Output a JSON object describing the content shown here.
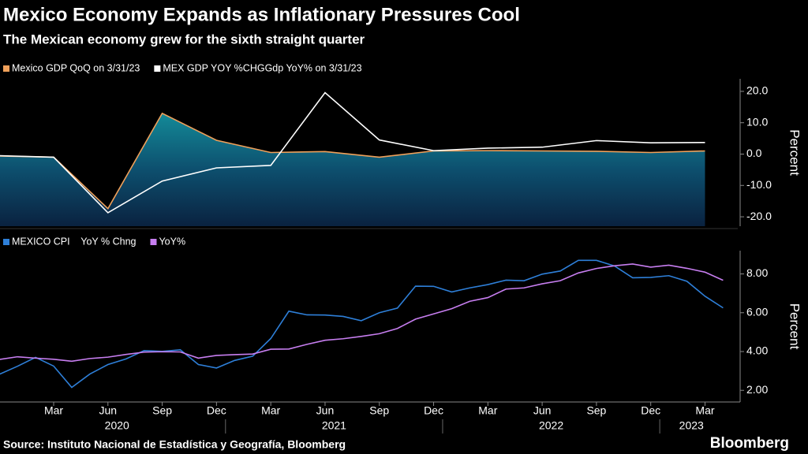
{
  "header": {
    "title": "Mexico Economy Expands as Inflationary Pressures Cool",
    "subtitle": "The Mexican economy grew for the sixth straight quarter"
  },
  "source": "Source: Instituto Nacional de Estadística y Geografía, Bloomberg",
  "brand": "Bloomberg",
  "chart_data": [
    {
      "type": "line",
      "area_series": 0,
      "y_label": "Percent",
      "x": [
        "2019-12",
        "2020-03",
        "2020-06",
        "2020-09",
        "2020-12",
        "2021-03",
        "2021-06",
        "2021-09",
        "2021-12",
        "2022-03",
        "2022-06",
        "2022-09",
        "2022-12",
        "2023-03"
      ],
      "series": [
        {
          "name": "Mexico GDP QoQ on 3/31/23",
          "color": "#f0a05a",
          "values": [
            -0.6,
            -1.0,
            -17.4,
            13.0,
            4.4,
            0.5,
            0.8,
            -1.0,
            1.0,
            1.1,
            1.0,
            0.9,
            0.5,
            1.0
          ]
        },
        {
          "name": "MEX GDP YOY %CHGGdp YoY% on 3/31/23",
          "color": "#ffffff",
          "values": [
            -0.5,
            -1.0,
            -18.7,
            -8.6,
            -4.4,
            -3.6,
            19.6,
            4.5,
            1.1,
            1.9,
            2.2,
            4.3,
            3.6,
            3.7
          ]
        }
      ],
      "ylim": [
        -23,
        24
      ],
      "yticks": [
        {
          "value": -20,
          "label": "-20.0"
        },
        {
          "value": -10,
          "label": "-10.0"
        },
        {
          "value": 0,
          "label": "0.0"
        },
        {
          "value": 10,
          "label": "10.0"
        },
        {
          "value": 20,
          "label": "20.0"
        }
      ]
    },
    {
      "type": "line",
      "y_label": "Percent",
      "x": [
        "2019-12",
        "2020-01",
        "2020-02",
        "2020-03",
        "2020-04",
        "2020-05",
        "2020-06",
        "2020-07",
        "2020-08",
        "2020-09",
        "2020-10",
        "2020-11",
        "2020-12",
        "2021-01",
        "2021-02",
        "2021-03",
        "2021-04",
        "2021-05",
        "2021-06",
        "2021-07",
        "2021-08",
        "2021-09",
        "2021-10",
        "2021-11",
        "2021-12",
        "2022-01",
        "2022-02",
        "2022-03",
        "2022-04",
        "2022-05",
        "2022-06",
        "2022-07",
        "2022-08",
        "2022-09",
        "2022-10",
        "2022-11",
        "2022-12",
        "2023-01",
        "2023-02",
        "2023-03",
        "2023-04"
      ],
      "series": [
        {
          "name": "MEXICO CPI    YoY % Chng",
          "color": "#2e7fd8",
          "values": [
            2.83,
            3.24,
            3.7,
            3.25,
            2.15,
            2.84,
            3.33,
            3.62,
            4.05,
            4.01,
            4.09,
            3.33,
            3.15,
            3.54,
            3.76,
            4.67,
            6.08,
            5.89,
            5.88,
            5.81,
            5.59,
            6.0,
            6.24,
            7.37,
            7.36,
            7.07,
            7.28,
            7.45,
            7.68,
            7.65,
            7.99,
            8.15,
            8.7,
            8.7,
            8.41,
            7.8,
            7.82,
            7.91,
            7.62,
            6.85,
            6.25
          ]
        },
        {
          "name": "YoY%",
          "color": "#c77ef0",
          "values": [
            3.59,
            3.73,
            3.66,
            3.6,
            3.5,
            3.64,
            3.71,
            3.85,
            3.97,
            3.99,
            3.98,
            3.66,
            3.8,
            3.84,
            3.87,
            4.12,
            4.13,
            4.37,
            4.58,
            4.66,
            4.78,
            4.92,
            5.19,
            5.67,
            5.94,
            6.21,
            6.59,
            6.78,
            7.22,
            7.28,
            7.49,
            7.65,
            8.05,
            8.28,
            8.42,
            8.51,
            8.35,
            8.45,
            8.29,
            8.09,
            7.67
          ]
        }
      ],
      "ylim": [
        1.4,
        9.2
      ],
      "yticks": [
        {
          "value": 2,
          "label": "2.00"
        },
        {
          "value": 4,
          "label": "4.00"
        },
        {
          "value": 6,
          "label": "6.00"
        },
        {
          "value": 8,
          "label": "8.00"
        }
      ],
      "xticks": [
        {
          "value": "2020-03",
          "label": "Mar"
        },
        {
          "value": "2020-06",
          "label": "Jun"
        },
        {
          "value": "2020-09",
          "label": "Sep"
        },
        {
          "value": "2020-12",
          "label": "Dec"
        },
        {
          "value": "2021-03",
          "label": "Mar"
        },
        {
          "value": "2021-06",
          "label": "Jun"
        },
        {
          "value": "2021-09",
          "label": "Sep"
        },
        {
          "value": "2021-12",
          "label": "Dec"
        },
        {
          "value": "2022-03",
          "label": "Mar"
        },
        {
          "value": "2022-06",
          "label": "Jun"
        },
        {
          "value": "2022-09",
          "label": "Sep"
        },
        {
          "value": "2022-12",
          "label": "Dec"
        },
        {
          "value": "2023-03",
          "label": "Mar"
        }
      ],
      "year_labels": [
        "2020",
        "2021",
        "2022",
        "2023"
      ]
    }
  ]
}
